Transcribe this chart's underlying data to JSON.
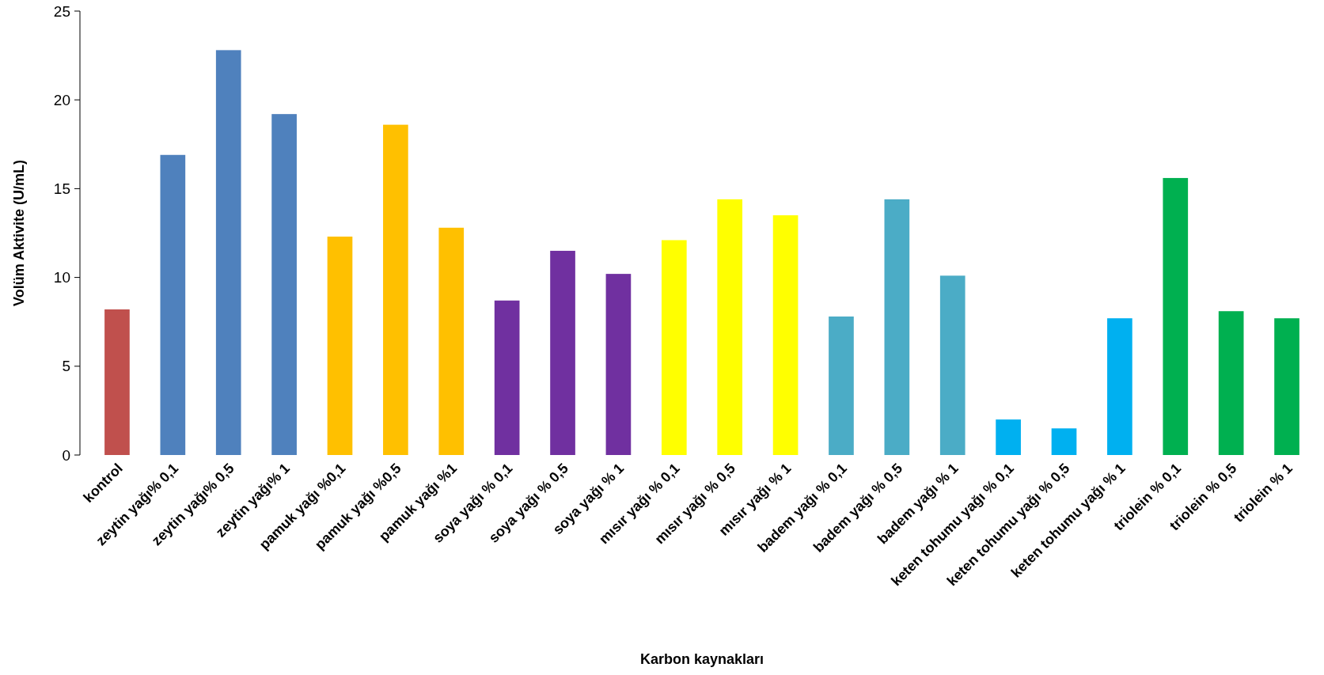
{
  "chart_data": {
    "type": "bar",
    "xlabel": "Karbon kaynakları",
    "ylabel": "Volüm Aktivite (U/mL)",
    "categories": [
      "kontrol",
      "zeytin yağı% 0,1",
      "zeytin yağı% 0,5",
      "zeytin yağı% 1",
      "pamuk yağı %0,1",
      "pamuk yağı %0,5",
      "pamuk yağı %1",
      "soya yağı % 0,1",
      "soya yağı % 0,5",
      "soya yağı % 1",
      "mısır yağı % 0,1",
      "mısır yağı % 0,5",
      "mısır yağı % 1",
      "badem yağı % 0,1",
      "badem yağı % 0,5",
      "badem yağı % 1",
      "keten tohumu yağı % 0,1",
      "keten tohumu yağı % 0,5",
      "keten tohumu yağı % 1",
      "triolein % 0,1",
      "triolein % 0,5",
      "triolein % 1"
    ],
    "values": [
      8.2,
      16.9,
      22.8,
      19.2,
      12.3,
      18.6,
      12.8,
      8.7,
      11.5,
      10.2,
      12.1,
      14.4,
      13.5,
      7.8,
      14.4,
      10.1,
      2.0,
      1.5,
      7.7,
      15.6,
      8.1,
      7.7
    ],
    "colors": [
      "#c0504d",
      "#4f81bd",
      "#4f81bd",
      "#4f81bd",
      "#ffc000",
      "#ffc000",
      "#ffc000",
      "#7030a0",
      "#7030a0",
      "#7030a0",
      "#ffff00",
      "#ffff00",
      "#ffff00",
      "#4bacc6",
      "#4bacc6",
      "#4bacc6",
      "#00b0f0",
      "#00b0f0",
      "#00b0f0",
      "#00b050",
      "#00b050",
      "#00b050"
    ],
    "ylim": [
      0,
      25
    ],
    "yticks": [
      0,
      5,
      10,
      15,
      20,
      25
    ],
    "grid": false
  }
}
